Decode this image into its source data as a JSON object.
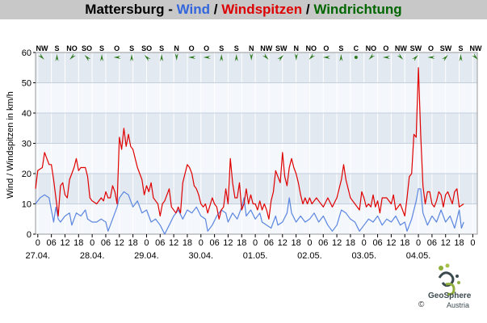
{
  "title": {
    "station": "Mattersburg",
    "sep1": " - ",
    "wind": "Wind",
    "sep2": " / ",
    "gust": "Windspitzen",
    "sep3": " / ",
    "dir": "Windrichtung",
    "colors": {
      "station": "#000000",
      "wind": "#3366dd",
      "gust": "#dd0000",
      "dir": "#006600"
    }
  },
  "logo": {
    "name": "GeoSphere",
    "sub": "Austria",
    "copyright": "©"
  },
  "chart_data": {
    "type": "line",
    "ylabel": "Wind / Windspitzen in km/h",
    "ylim": [
      0,
      60
    ],
    "yticks": [
      0,
      10,
      20,
      30,
      40,
      50,
      60
    ],
    "x_unit": "hours since 27.04. 00:00",
    "xlim": [
      -1,
      194
    ],
    "hour_ticks": [
      {
        "h": 0,
        "label": "0"
      },
      {
        "h": 6,
        "label": "06"
      },
      {
        "h": 12,
        "label": "12"
      },
      {
        "h": 18,
        "label": "18"
      },
      {
        "h": 24,
        "label": "0"
      },
      {
        "h": 30,
        "label": "06"
      },
      {
        "h": 36,
        "label": "12"
      },
      {
        "h": 42,
        "label": "18"
      },
      {
        "h": 48,
        "label": "0"
      },
      {
        "h": 54,
        "label": "06"
      },
      {
        "h": 60,
        "label": "12"
      },
      {
        "h": 66,
        "label": "18"
      },
      {
        "h": 72,
        "label": "0"
      },
      {
        "h": 78,
        "label": "06"
      },
      {
        "h": 84,
        "label": "12"
      },
      {
        "h": 90,
        "label": "18"
      },
      {
        "h": 96,
        "label": "0"
      },
      {
        "h": 102,
        "label": "06"
      },
      {
        "h": 108,
        "label": "12"
      },
      {
        "h": 114,
        "label": "18"
      },
      {
        "h": 120,
        "label": "0"
      },
      {
        "h": 126,
        "label": "06"
      },
      {
        "h": 132,
        "label": "12"
      },
      {
        "h": 138,
        "label": "18"
      },
      {
        "h": 144,
        "label": "0"
      },
      {
        "h": 150,
        "label": "06"
      },
      {
        "h": 156,
        "label": "12"
      },
      {
        "h": 162,
        "label": "18"
      },
      {
        "h": 168,
        "label": "0"
      },
      {
        "h": 174,
        "label": "06"
      },
      {
        "h": 180,
        "label": "12"
      },
      {
        "h": 186,
        "label": "18"
      },
      {
        "h": 192,
        "label": "0"
      }
    ],
    "date_ticks": [
      {
        "h": 0,
        "label": "27.04."
      },
      {
        "h": 24,
        "label": "28.04."
      },
      {
        "h": 48,
        "label": "29.04."
      },
      {
        "h": 72,
        "label": "30.04."
      },
      {
        "h": 96,
        "label": "01.05."
      },
      {
        "h": 120,
        "label": "02.05."
      },
      {
        "h": 144,
        "label": "03.05."
      },
      {
        "h": 168,
        "label": "04.05."
      }
    ],
    "series": [
      {
        "name": "Wind",
        "color": "#5b86e0",
        "points": [
          [
            -1,
            10
          ],
          [
            1,
            12
          ],
          [
            3,
            13
          ],
          [
            5,
            12
          ],
          [
            6,
            8
          ],
          [
            7,
            4
          ],
          [
            8,
            9
          ],
          [
            9,
            5
          ],
          [
            10,
            4
          ],
          [
            12,
            6
          ],
          [
            14,
            7
          ],
          [
            15,
            3
          ],
          [
            17,
            7
          ],
          [
            19,
            6
          ],
          [
            21,
            8
          ],
          [
            22,
            5
          ],
          [
            24,
            4
          ],
          [
            26,
            4
          ],
          [
            28,
            5
          ],
          [
            30,
            4
          ],
          [
            31,
            1
          ],
          [
            32,
            3
          ],
          [
            33,
            5
          ],
          [
            35,
            9
          ],
          [
            36,
            12
          ],
          [
            38,
            14
          ],
          [
            40,
            13
          ],
          [
            42,
            9
          ],
          [
            44,
            11
          ],
          [
            46,
            7
          ],
          [
            48,
            8
          ],
          [
            50,
            4
          ],
          [
            52,
            5
          ],
          [
            54,
            3
          ],
          [
            56,
            0
          ],
          [
            58,
            3
          ],
          [
            60,
            6
          ],
          [
            62,
            8
          ],
          [
            64,
            5
          ],
          [
            66,
            8
          ],
          [
            68,
            7
          ],
          [
            70,
            9
          ],
          [
            72,
            6
          ],
          [
            74,
            5
          ],
          [
            75,
            1
          ],
          [
            77,
            3
          ],
          [
            79,
            6
          ],
          [
            81,
            8
          ],
          [
            83,
            7
          ],
          [
            84,
            4
          ],
          [
            86,
            7
          ],
          [
            88,
            5
          ],
          [
            90,
            9
          ],
          [
            91,
            12
          ],
          [
            92,
            6
          ],
          [
            94,
            8
          ],
          [
            96,
            5
          ],
          [
            98,
            7
          ],
          [
            99,
            4
          ],
          [
            101,
            3
          ],
          [
            103,
            2
          ],
          [
            105,
            6
          ],
          [
            106,
            3
          ],
          [
            108,
            4
          ],
          [
            110,
            7
          ],
          [
            111,
            12
          ],
          [
            112,
            7
          ],
          [
            114,
            4
          ],
          [
            116,
            6
          ],
          [
            118,
            4
          ],
          [
            120,
            5
          ],
          [
            122,
            7
          ],
          [
            124,
            4
          ],
          [
            126,
            6
          ],
          [
            128,
            3
          ],
          [
            130,
            1
          ],
          [
            132,
            3
          ],
          [
            134,
            8
          ],
          [
            136,
            7
          ],
          [
            138,
            5
          ],
          [
            140,
            4
          ],
          [
            142,
            1
          ],
          [
            144,
            3
          ],
          [
            146,
            5
          ],
          [
            148,
            4
          ],
          [
            150,
            6
          ],
          [
            152,
            3
          ],
          [
            154,
            5
          ],
          [
            156,
            4
          ],
          [
            158,
            6
          ],
          [
            160,
            3
          ],
          [
            162,
            4
          ],
          [
            163,
            1
          ],
          [
            165,
            5
          ],
          [
            167,
            11
          ],
          [
            168,
            15
          ],
          [
            169,
            15
          ],
          [
            170,
            7
          ],
          [
            172,
            3
          ],
          [
            174,
            6
          ],
          [
            176,
            4
          ],
          [
            178,
            8
          ],
          [
            180,
            4
          ],
          [
            182,
            6
          ],
          [
            184,
            2
          ],
          [
            186,
            8
          ],
          [
            187,
            2
          ],
          [
            188,
            4
          ]
        ]
      },
      {
        "name": "Windspitzen",
        "color": "#e00000",
        "points": [
          [
            -1,
            15
          ],
          [
            0,
            21
          ],
          [
            2,
            22
          ],
          [
            3,
            27
          ],
          [
            4,
            25
          ],
          [
            5,
            23
          ],
          [
            6,
            23
          ],
          [
            7,
            18
          ],
          [
            8,
            12
          ],
          [
            9,
            6
          ],
          [
            10,
            16
          ],
          [
            11,
            17
          ],
          [
            12,
            13
          ],
          [
            13,
            12
          ],
          [
            14,
            18
          ],
          [
            16,
            22
          ],
          [
            17,
            25
          ],
          [
            18,
            21
          ],
          [
            19,
            22
          ],
          [
            20,
            22
          ],
          [
            21,
            22
          ],
          [
            22,
            19
          ],
          [
            23,
            12
          ],
          [
            24,
            11
          ],
          [
            26,
            10
          ],
          [
            28,
            12
          ],
          [
            29,
            11
          ],
          [
            30,
            14
          ],
          [
            31,
            12
          ],
          [
            32,
            12
          ],
          [
            33,
            16
          ],
          [
            34,
            14
          ],
          [
            35,
            10
          ],
          [
            36,
            32
          ],
          [
            37,
            28
          ],
          [
            38,
            35
          ],
          [
            39,
            29
          ],
          [
            40,
            33
          ],
          [
            41,
            29
          ],
          [
            42,
            28
          ],
          [
            43,
            25
          ],
          [
            44,
            22
          ],
          [
            45,
            20
          ],
          [
            46,
            18
          ],
          [
            47,
            13
          ],
          [
            48,
            16
          ],
          [
            49,
            14
          ],
          [
            50,
            17
          ],
          [
            51,
            12
          ],
          [
            52,
            11
          ],
          [
            53,
            10
          ],
          [
            54,
            6
          ],
          [
            55,
            10
          ],
          [
            56,
            11
          ],
          [
            58,
            15
          ],
          [
            59,
            9
          ],
          [
            61,
            7
          ],
          [
            62,
            9
          ],
          [
            63,
            7
          ],
          [
            64,
            17
          ],
          [
            65,
            20
          ],
          [
            66,
            23
          ],
          [
            67,
            22
          ],
          [
            68,
            20
          ],
          [
            69,
            16
          ],
          [
            70,
            15
          ],
          [
            71,
            13
          ],
          [
            72,
            10
          ],
          [
            73,
            9
          ],
          [
            74,
            10
          ],
          [
            75,
            7
          ],
          [
            77,
            12
          ],
          [
            78,
            10
          ],
          [
            79,
            9
          ],
          [
            80,
            5
          ],
          [
            81,
            8
          ],
          [
            82,
            9
          ],
          [
            83,
            15
          ],
          [
            84,
            10
          ],
          [
            85,
            25
          ],
          [
            86,
            17
          ],
          [
            87,
            12
          ],
          [
            88,
            12
          ],
          [
            89,
            17
          ],
          [
            90,
            8
          ],
          [
            91,
            10
          ],
          [
            92,
            15
          ],
          [
            93,
            10
          ],
          [
            94,
            13
          ],
          [
            95,
            10
          ],
          [
            96,
            10
          ],
          [
            97,
            8
          ],
          [
            98,
            11
          ],
          [
            99,
            8
          ],
          [
            100,
            10
          ],
          [
            101,
            8
          ],
          [
            102,
            5
          ],
          [
            103,
            11
          ],
          [
            104,
            14
          ],
          [
            105,
            21
          ],
          [
            106,
            19
          ],
          [
            107,
            17
          ],
          [
            108,
            27
          ],
          [
            109,
            19
          ],
          [
            110,
            16
          ],
          [
            111,
            22
          ],
          [
            112,
            25
          ],
          [
            113,
            22
          ],
          [
            114,
            20
          ],
          [
            115,
            17
          ],
          [
            116,
            13
          ],
          [
            117,
            10
          ],
          [
            118,
            12
          ],
          [
            119,
            10
          ],
          [
            120,
            12
          ],
          [
            121,
            10
          ],
          [
            122,
            11
          ],
          [
            123,
            12
          ],
          [
            124,
            11
          ],
          [
            126,
            9
          ],
          [
            128,
            12
          ],
          [
            130,
            9
          ],
          [
            132,
            12
          ],
          [
            134,
            18
          ],
          [
            135,
            23
          ],
          [
            136,
            18
          ],
          [
            137,
            15
          ],
          [
            138,
            12
          ],
          [
            139,
            11
          ],
          [
            140,
            10
          ],
          [
            142,
            8
          ],
          [
            143,
            14
          ],
          [
            144,
            12
          ],
          [
            145,
            9
          ],
          [
            146,
            10
          ],
          [
            147,
            9
          ],
          [
            148,
            13
          ],
          [
            149,
            9
          ],
          [
            150,
            11
          ],
          [
            151,
            7
          ],
          [
            152,
            12
          ],
          [
            154,
            12
          ],
          [
            156,
            10
          ],
          [
            157,
            13
          ],
          [
            158,
            8
          ],
          [
            159,
            9
          ],
          [
            160,
            10
          ],
          [
            161,
            8
          ],
          [
            162,
            6
          ],
          [
            163,
            12
          ],
          [
            164,
            19
          ],
          [
            165,
            20
          ],
          [
            166,
            33
          ],
          [
            167,
            32
          ],
          [
            168,
            55
          ],
          [
            169,
            33
          ],
          [
            170,
            16
          ],
          [
            171,
            10
          ],
          [
            172,
            14
          ],
          [
            173,
            14
          ],
          [
            174,
            10
          ],
          [
            175,
            9
          ],
          [
            176,
            11
          ],
          [
            177,
            14
          ],
          [
            178,
            13
          ],
          [
            179,
            9
          ],
          [
            180,
            13
          ],
          [
            181,
            14
          ],
          [
            182,
            12
          ],
          [
            183,
            10
          ],
          [
            184,
            14
          ],
          [
            185,
            15
          ],
          [
            186,
            9
          ],
          [
            188,
            10
          ]
        ]
      }
    ],
    "directions": [
      "NW",
      "S",
      "NO",
      "SO",
      "S",
      "O",
      "S",
      "SO",
      "S",
      "N",
      "O",
      "O",
      "S",
      "S",
      "N",
      "NW",
      "SW",
      "N",
      "NO",
      "O",
      "S",
      "C",
      "NO",
      "O",
      "NW",
      "SW",
      "O",
      "SW",
      "S",
      "NW"
    ]
  }
}
